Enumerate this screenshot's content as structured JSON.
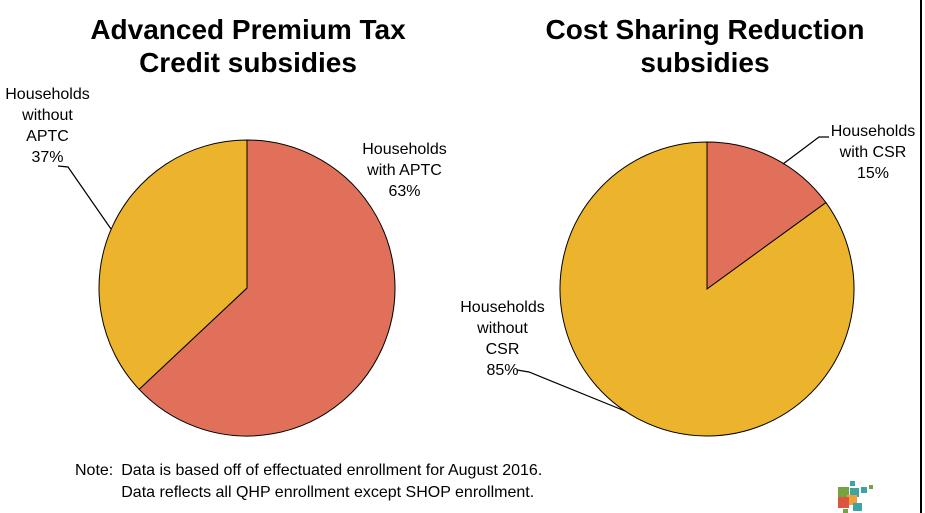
{
  "titles": {
    "left": {
      "lines": [
        "Advanced Premium Tax",
        "Credit subsidies"
      ]
    },
    "right": {
      "lines": [
        "Cost Sharing Reduction",
        "subsidies"
      ]
    }
  },
  "chart_data": [
    {
      "type": "pie",
      "title": "Advanced Premium Tax Credit subsidies",
      "labels": [
        "Households with APTC",
        "Households without APTC"
      ],
      "values": [
        63,
        37
      ],
      "colors": [
        "#E0705A",
        "#ECB32D"
      ],
      "start_angle": "12 o'clock, clockwise",
      "data_labels": [
        "Households with APTC 63%",
        "Households without APTC 37%"
      ]
    },
    {
      "type": "pie",
      "title": "Cost Sharing Reduction subsidies",
      "labels": [
        "Households with CSR",
        "Households without CSR"
      ],
      "values": [
        15,
        85
      ],
      "colors": [
        "#E0705A",
        "#ECB32D"
      ],
      "start_angle": "12 o'clock, clockwise",
      "data_labels": [
        "Households with CSR 15%",
        "Households without CSR 85%"
      ]
    }
  ],
  "callouts": {
    "without_aptc": {
      "lines": [
        "Households",
        "without",
        "APTC",
        "37%"
      ]
    },
    "with_aptc": {
      "lines": [
        "Households",
        "with APTC",
        "63%"
      ]
    },
    "with_csr": {
      "lines": [
        "Households",
        "with CSR",
        "15%"
      ]
    },
    "without_csr": {
      "lines": [
        "Households",
        "without",
        "CSR",
        "85%"
      ]
    }
  },
  "note": {
    "label": "Note:",
    "lines": [
      "Data is based off of effectuated enrollment for August 2016.",
      "Data reflects all QHP enrollment except SHOP enrollment."
    ]
  },
  "logo": {
    "name": "colored-squares-logo",
    "colors": {
      "green": "#76A240",
      "teal": "#3EA3A3",
      "orange": "#EFA03C",
      "red": "#DC5540"
    }
  },
  "frame": {
    "right_border_color": "#000000"
  }
}
